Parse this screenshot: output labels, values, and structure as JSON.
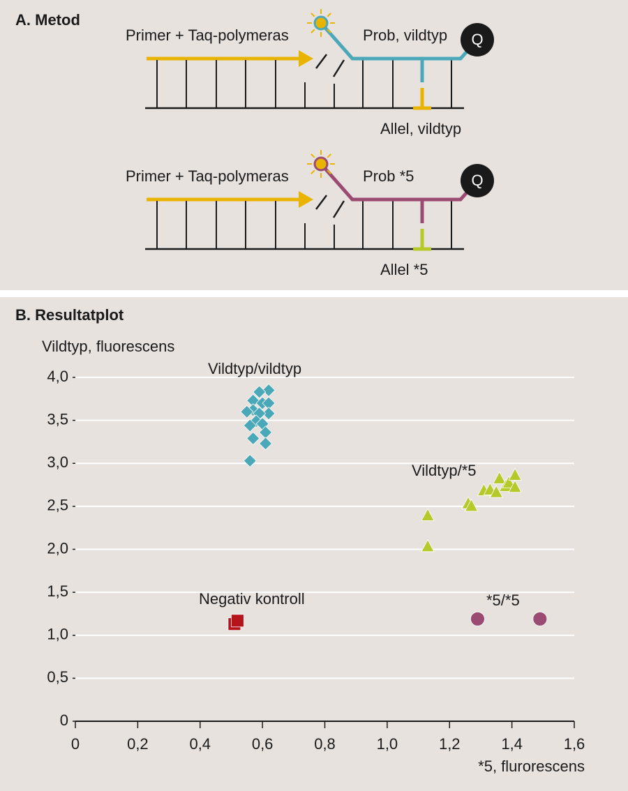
{
  "diagram": {
    "title": "A. Metod",
    "panels": [
      {
        "primer_label": "Primer + Taq-polymeras",
        "probe_label": "Prob, vildtyp",
        "allele_label": "Allel, vildtyp",
        "quencher": "Q",
        "probe_color": "#4aa8b8",
        "allele_color": "#e8b400"
      },
      {
        "primer_label": "Primer + Taq-polymeras",
        "probe_label": "Prob *5",
        "allele_label": "Allel *5",
        "quencher": "Q",
        "probe_color": "#9b4a72",
        "allele_color": "#b5c92a"
      }
    ]
  },
  "chart_data": {
    "type": "scatter",
    "title": "B. Resultatplot",
    "ylabel": "Vildtyp, fluorescens",
    "xlabel": "*5, flurorescens",
    "xlim": [
      0,
      1.6
    ],
    "ylim": [
      0,
      4.0
    ],
    "xticks": [
      0,
      {
        "value": 0.2,
        "label": "0,2"
      },
      {
        "value": 0.4,
        "label": "0,4"
      },
      {
        "value": 0.6,
        "label": "0,6"
      },
      {
        "value": 0.8,
        "label": "0,8"
      },
      {
        "value": 1.0,
        "label": "1,0"
      },
      {
        "value": 1.2,
        "label": "1,2"
      },
      {
        "value": 1.4,
        "label": "1,4"
      },
      {
        "value": 1.6,
        "label": "1,6"
      }
    ],
    "yticks": [
      0,
      {
        "value": 0.5,
        "label": "0,5"
      },
      {
        "value": 1.0,
        "label": "1,0"
      },
      {
        "value": 1.5,
        "label": "1,5"
      },
      {
        "value": 2.0,
        "label": "2,0"
      },
      {
        "value": 2.5,
        "label": "2,5"
      },
      {
        "value": 3.0,
        "label": "3,0"
      },
      {
        "value": 3.5,
        "label": "3,5"
      },
      {
        "value": 4.0,
        "label": "4,0"
      }
    ],
    "grid": true,
    "series": [
      {
        "name": "Vildtyp/vildtyp",
        "color": "#4aa8b8",
        "marker": "diamond",
        "x": [
          0.62,
          0.59,
          0.57,
          0.6,
          0.62,
          0.57,
          0.55,
          0.62,
          0.59,
          0.58,
          0.6,
          0.56,
          0.61,
          0.57,
          0.61,
          0.56
        ],
        "y": [
          3.85,
          3.83,
          3.73,
          3.7,
          3.7,
          3.62,
          3.6,
          3.58,
          3.58,
          3.49,
          3.46,
          3.44,
          3.36,
          3.29,
          3.23,
          3.03
        ]
      },
      {
        "name": "Vildtyp/*5",
        "color": "#b5c92a",
        "marker": "triangle",
        "x": [
          1.13,
          1.13,
          1.26,
          1.27,
          1.31,
          1.33,
          1.35,
          1.36,
          1.38,
          1.39,
          1.41,
          1.41
        ],
        "y": [
          2.39,
          2.03,
          2.53,
          2.5,
          2.68,
          2.69,
          2.66,
          2.82,
          2.73,
          2.77,
          2.86,
          2.72
        ]
      },
      {
        "name": "*5/*5",
        "color": "#9b4a72",
        "marker": "circle",
        "x": [
          1.29,
          1.49
        ],
        "y": [
          1.19,
          1.19
        ]
      },
      {
        "name": "Negativ kontroll",
        "color": "#b5141c",
        "marker": "square",
        "x": [
          0.51,
          0.52
        ],
        "y": [
          1.13,
          1.17
        ]
      }
    ]
  }
}
